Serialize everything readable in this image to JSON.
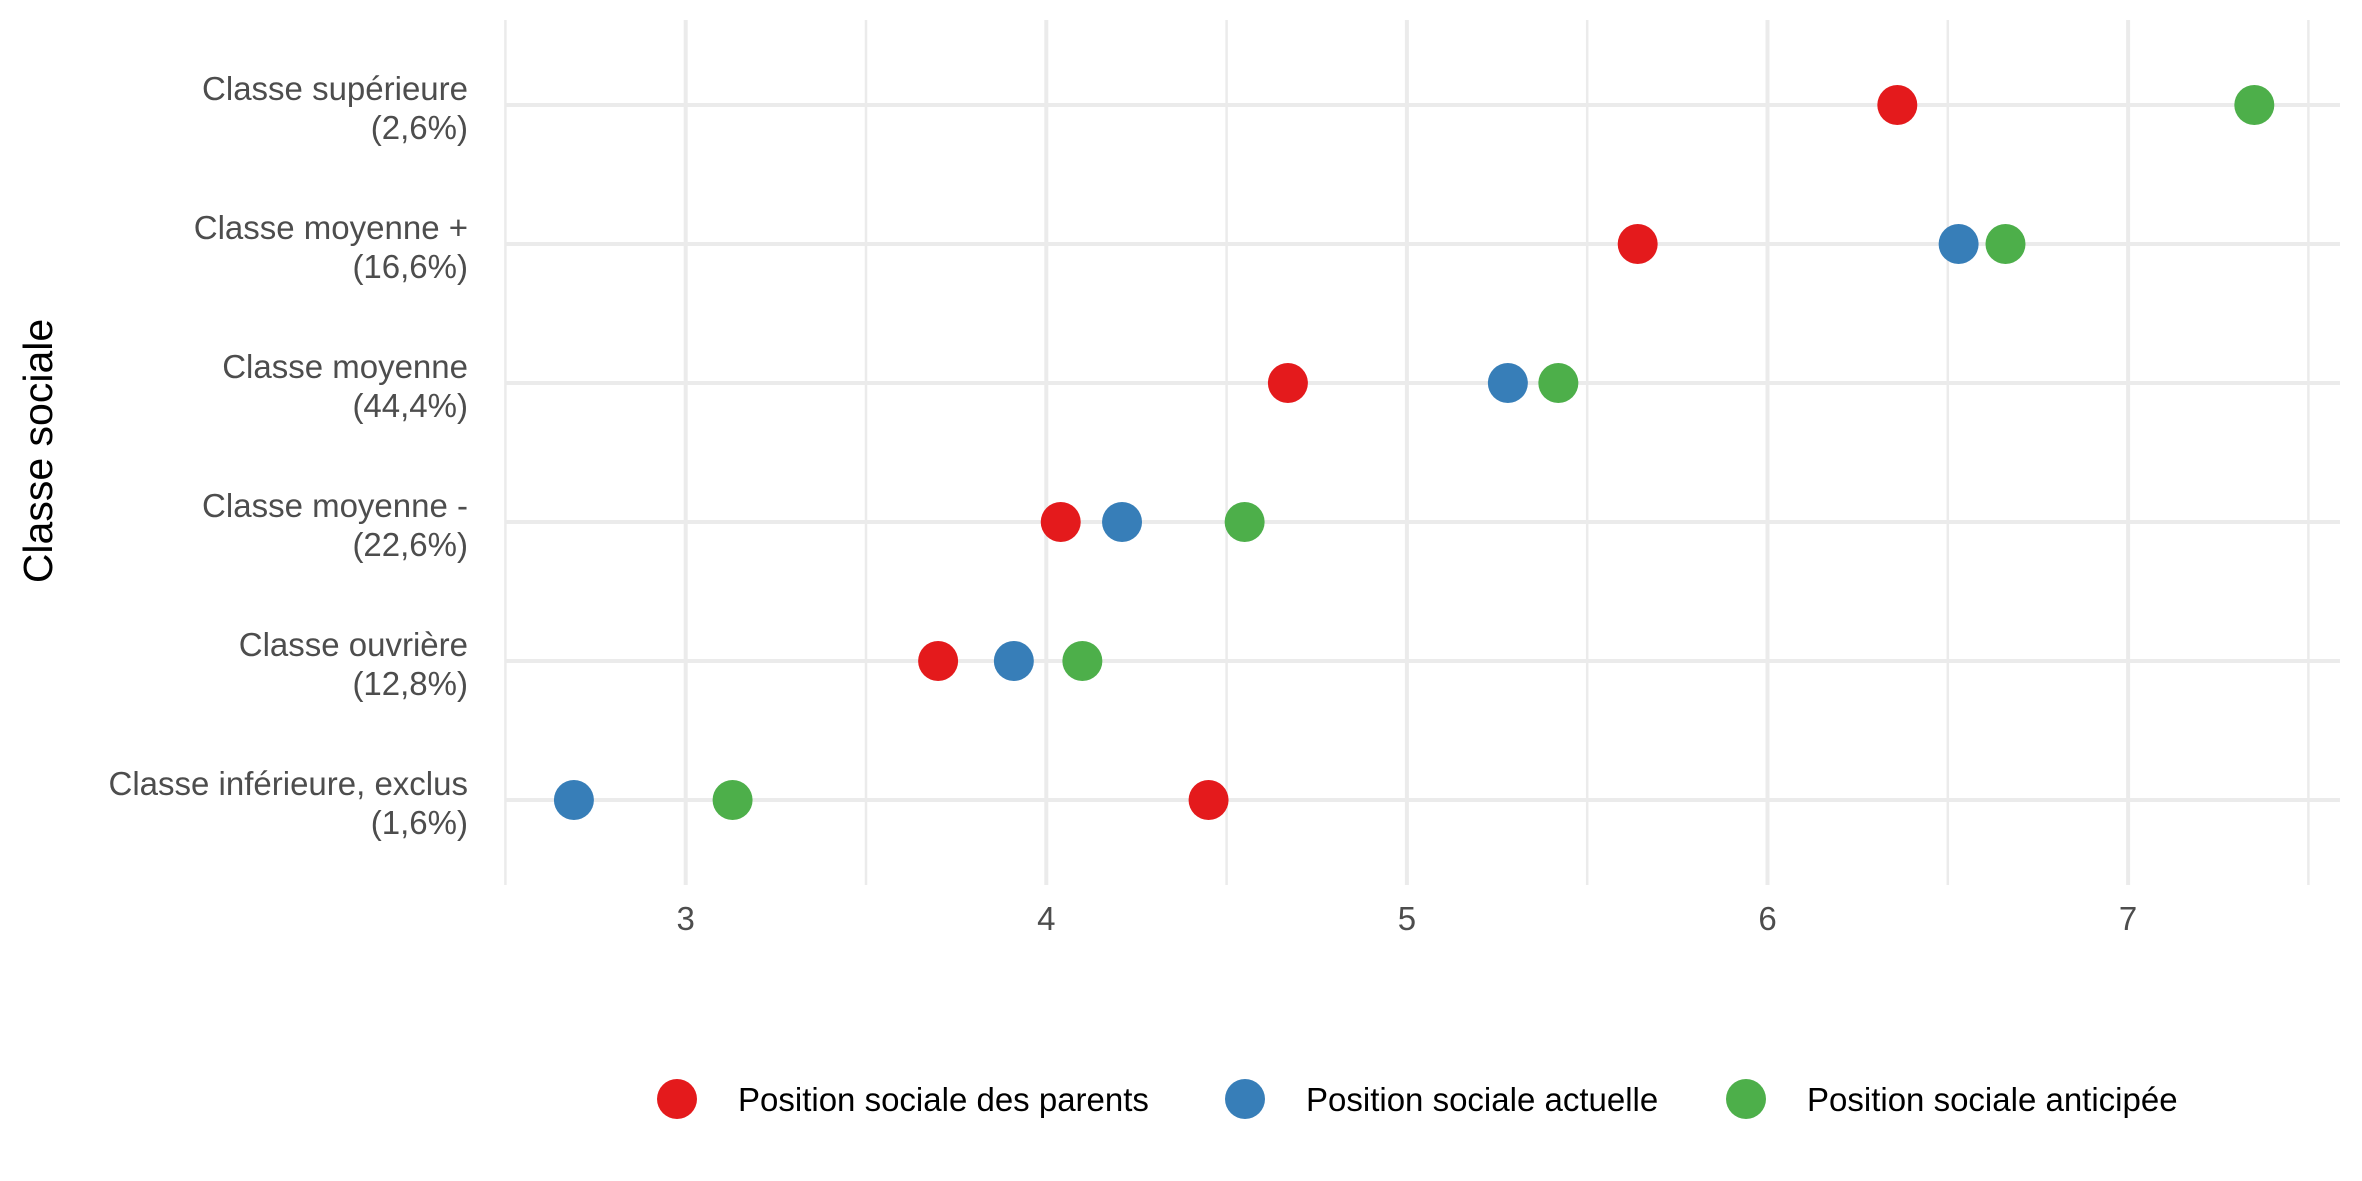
{
  "chart_data": {
    "type": "scatter",
    "xlabel": "",
    "ylabel": "Classe sociale",
    "xlim": [
      2.5,
      7.5
    ],
    "x_ticks": [
      "3",
      "4",
      "5",
      "6",
      "7"
    ],
    "grid": true,
    "legend_position": "bottom",
    "categories": [
      [
        "Classe inférieure, exclus",
        "(1,6%)"
      ],
      [
        "Classe ouvrière",
        "(12,8%)"
      ],
      [
        "Classe moyenne -",
        "(22,6%)"
      ],
      [
        "Classe moyenne",
        "(44,4%)"
      ],
      [
        "Classe moyenne +",
        "(16,6%)"
      ],
      [
        "Classe supérieure",
        "(2,6%)"
      ]
    ],
    "series": [
      {
        "name": "Position sociale des parents",
        "color": "#e41a1c",
        "values": [
          4.45,
          3.7,
          4.04,
          4.67,
          5.64,
          6.36
        ]
      },
      {
        "name": "Position sociale actuelle",
        "color": "#377eb8",
        "values": [
          2.69,
          3.91,
          4.21,
          5.28,
          6.53,
          null
        ]
      },
      {
        "name": "Position sociale anticipée",
        "color": "#4daf4a",
        "values": [
          3.13,
          4.1,
          4.55,
          5.42,
          6.66,
          7.35
        ]
      }
    ]
  }
}
